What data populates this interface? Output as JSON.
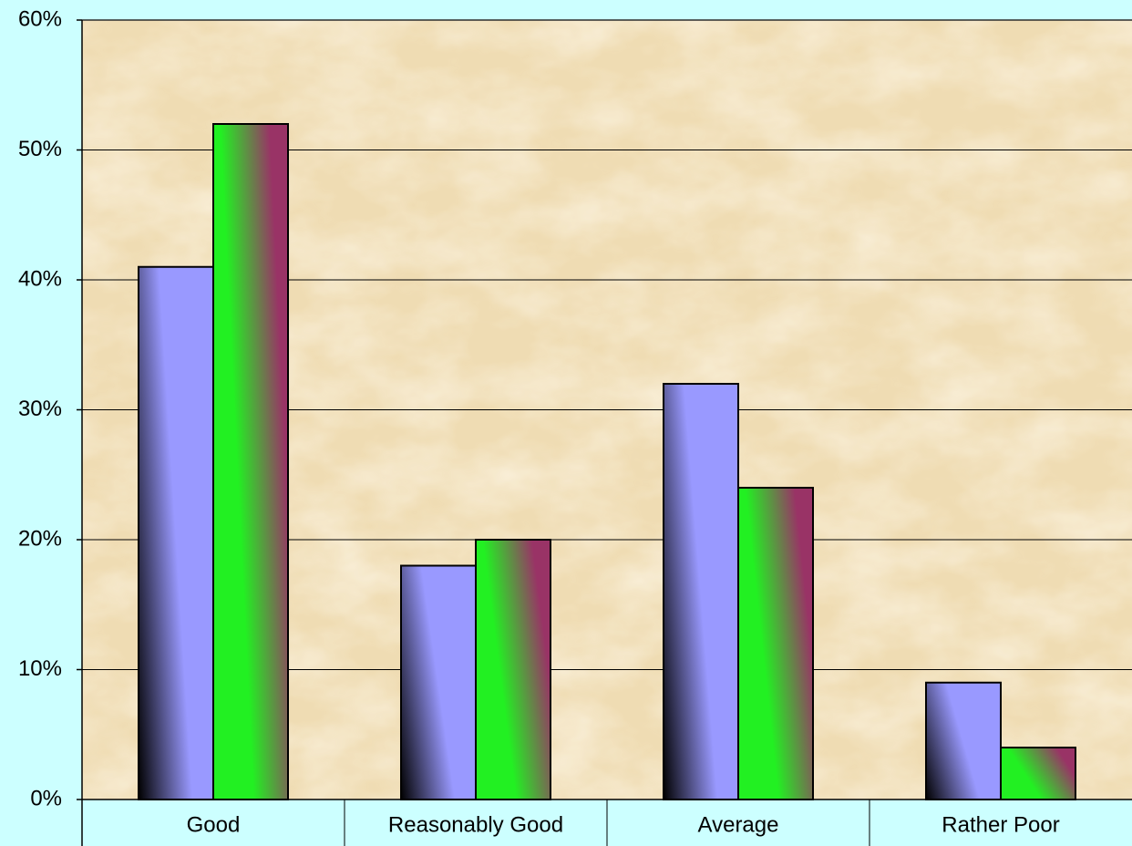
{
  "chart_data": {
    "type": "bar",
    "categories": [
      "Good",
      "Reasonably Good",
      "Average",
      "Rather Poor"
    ],
    "series": [
      {
        "color": "#9999ff",
        "values": [
          41,
          18,
          32,
          9
        ]
      },
      {
        "color": "#22f022",
        "values": [
          52,
          20,
          24,
          4
        ]
      }
    ],
    "ylim": [
      0,
      60
    ],
    "yticks": [
      {
        "value": 0,
        "label": "0%"
      },
      {
        "value": 10,
        "label": "10%"
      },
      {
        "value": 20,
        "label": "20%"
      },
      {
        "value": 30,
        "label": "30%"
      },
      {
        "value": 40,
        "label": "40%"
      },
      {
        "value": 50,
        "label": "50%"
      },
      {
        "value": 60,
        "label": "60%"
      }
    ],
    "grid": true
  }
}
